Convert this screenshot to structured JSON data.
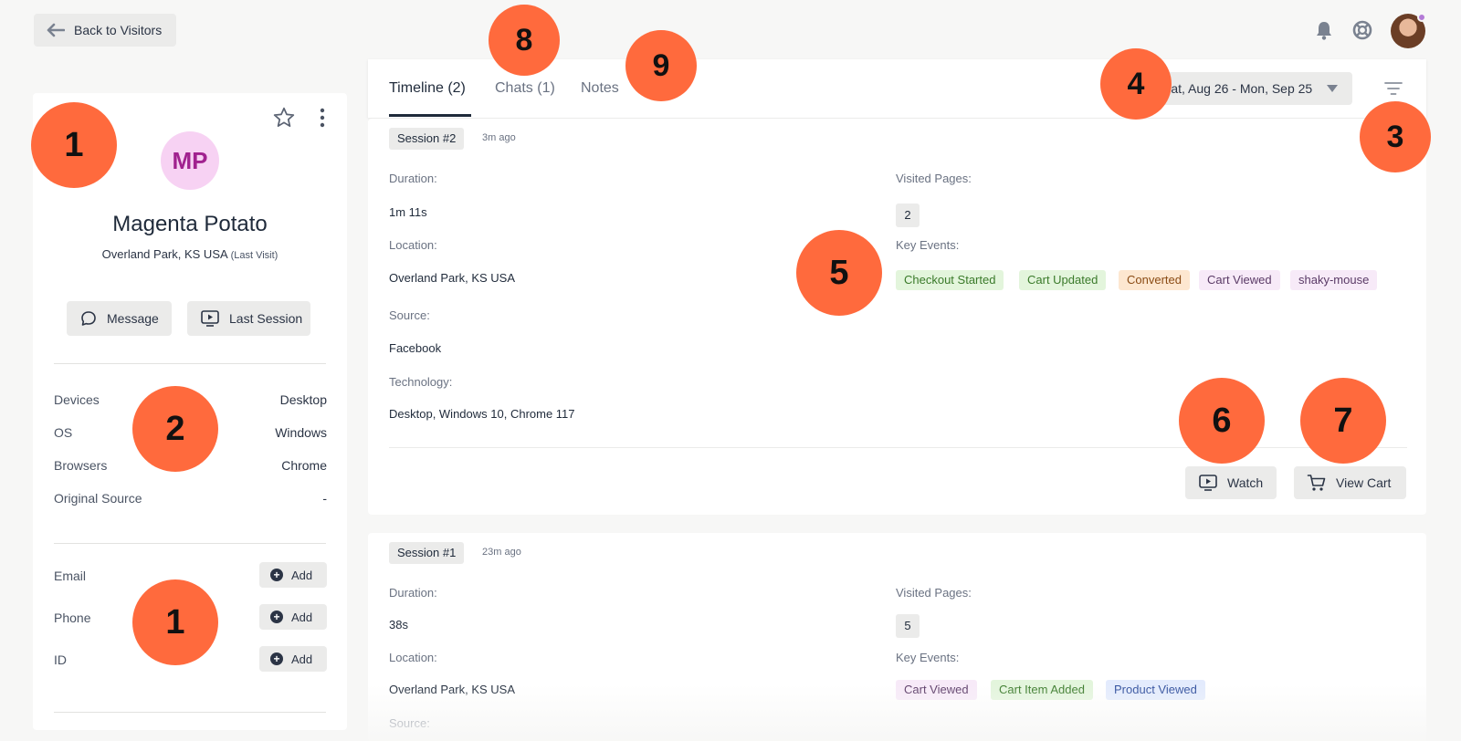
{
  "header": {
    "back_label": "Back to Visitors"
  },
  "visitor": {
    "initials": "MP",
    "name": "Magenta Potato",
    "location": "Overland Park, KS USA",
    "location_note": "(Last Visit)",
    "message_label": "Message",
    "last_session_label": "Last Session",
    "properties": [
      {
        "label": "Devices",
        "value": "Desktop"
      },
      {
        "label": "OS",
        "value": "Windows"
      },
      {
        "label": "Browsers",
        "value": "Chrome"
      },
      {
        "label": "Original Source",
        "value": "-"
      }
    ],
    "contact_fields": [
      {
        "label": "Email",
        "action": "Add"
      },
      {
        "label": "Phone",
        "action": "Add"
      },
      {
        "label": "ID",
        "action": "Add"
      }
    ]
  },
  "tabs": [
    {
      "label": "Timeline (2)",
      "active": true
    },
    {
      "label": "Chats (1)",
      "active": false
    },
    {
      "label": "Notes",
      "active": false
    }
  ],
  "date_range": "Sat, Aug 26 - Mon, Sep 25",
  "labels": {
    "duration": "Duration:",
    "location": "Location:",
    "source": "Source:",
    "technology": "Technology:",
    "visited_pages": "Visited Pages:",
    "key_events": "Key Events:",
    "watch": "Watch",
    "view_cart": "View Cart"
  },
  "sessions": [
    {
      "badge": "Session #2",
      "ago": "3m ago",
      "duration": "1m 11s",
      "location": "Overland Park, KS USA",
      "source": "Facebook",
      "technology": "Desktop, Windows 10, Chrome 117",
      "visited_pages": "2",
      "key_events": [
        {
          "label": "Checkout Started",
          "color": "green"
        },
        {
          "label": "Cart Updated",
          "color": "green"
        },
        {
          "label": "Converted",
          "color": "orange"
        },
        {
          "label": "Cart Viewed",
          "color": "purple"
        },
        {
          "label": "shaky-mouse",
          "color": "purple"
        }
      ]
    },
    {
      "badge": "Session #1",
      "ago": "23m ago",
      "duration": "38s",
      "location": "Overland Park, KS USA",
      "source_partial": "Source:",
      "visited_pages": "5",
      "key_events": [
        {
          "label": "Cart Viewed",
          "color": "purple"
        },
        {
          "label": "Cart Item Added",
          "color": "green"
        },
        {
          "label": "Product Viewed",
          "color": "blue"
        }
      ]
    }
  ],
  "markers": [
    "1",
    "2",
    "1",
    "3",
    "4",
    "5",
    "6",
    "7",
    "8",
    "9"
  ],
  "colors": {
    "marker": "#ff6a3d",
    "avatar_bg": "#f7d2f3",
    "avatar_text": "#a1228f",
    "background": "#f7f7f6"
  }
}
